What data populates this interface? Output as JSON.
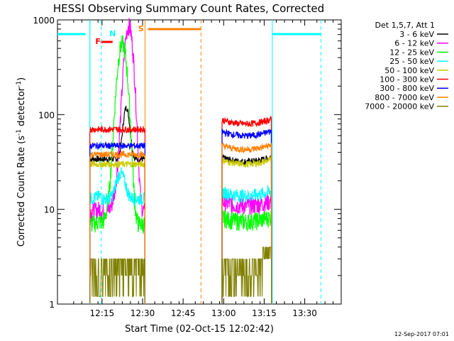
{
  "chart_data": {
    "type": "line",
    "title": "HESSI Observing Summary Count Rates, Corrected",
    "xlabel": "Start Time (02-Oct-15 12:02:42)",
    "ylabel_main": "Corrected Count Rate (s",
    "ylabel_sup1": "-1",
    "ylabel_mid": " detector",
    "ylabel_sup2": "-1",
    "ylabel_end": ")",
    "yscale": "log",
    "ylim": [
      1,
      1000
    ],
    "xlim_minutes": [
      7,
      42
    ],
    "x_ticks": [
      {
        "m": 12.5,
        "label": "12:15"
      },
      {
        "m": 17.5,
        "label": "12:30"
      },
      {
        "m": 22.5,
        "label": "12:45"
      },
      {
        "m": 27.5,
        "label": "13:00"
      },
      {
        "m": 32.5,
        "label": "13:15"
      },
      {
        "m": 37.5,
        "label": "13:30"
      }
    ],
    "y_ticks": [
      {
        "v": 1,
        "label": "1"
      },
      {
        "v": 10,
        "label": "10"
      },
      {
        "v": 100,
        "label": "100"
      },
      {
        "v": 1000,
        "label": "1000"
      }
    ],
    "legend_header": "Det 1,5,7, Att 1",
    "legend_position": "right",
    "series": [
      {
        "name": "3 - 6 keV",
        "color": "#000000",
        "level1": 34,
        "level2": 32
      },
      {
        "name": "6 - 12 keV",
        "color": "#ff00ff",
        "level1": 9.5,
        "level2": 11,
        "peak": 850
      },
      {
        "name": "12 - 25 keV",
        "color": "#00ff00",
        "level1": 7,
        "level2": 7.5,
        "peak": 560
      },
      {
        "name": "25 - 50 keV",
        "color": "#00ffff",
        "level1": 13,
        "level2": 14,
        "peak": 24
      },
      {
        "name": "50 - 100 keV",
        "color": "#cccc00",
        "level1": 30,
        "level2": 30
      },
      {
        "name": "100 - 300 keV",
        "color": "#ff0000",
        "level1": 70,
        "level2": 80
      },
      {
        "name": "300 - 800 keV",
        "color": "#0000ff",
        "level1": 47,
        "level2": 60
      },
      {
        "name": "800 - 7000 keV",
        "color": "#ff8000",
        "level1": 38,
        "level2": 43
      },
      {
        "name": "7000 - 20000 keV",
        "color": "#808000",
        "level1": 2.5,
        "level2": 2.5
      }
    ],
    "annotations": [
      {
        "label": "F",
        "color": "#ff0000"
      },
      {
        "label": "N",
        "color": "#00ffff"
      },
      {
        "label": "S",
        "color": "#ff8000"
      }
    ],
    "data_windows_minutes": [
      [
        11.0,
        17.8
      ],
      [
        27.3,
        33.4
      ]
    ]
  },
  "footer": {
    "timestamp": "12-Sep-2017 07:01"
  }
}
